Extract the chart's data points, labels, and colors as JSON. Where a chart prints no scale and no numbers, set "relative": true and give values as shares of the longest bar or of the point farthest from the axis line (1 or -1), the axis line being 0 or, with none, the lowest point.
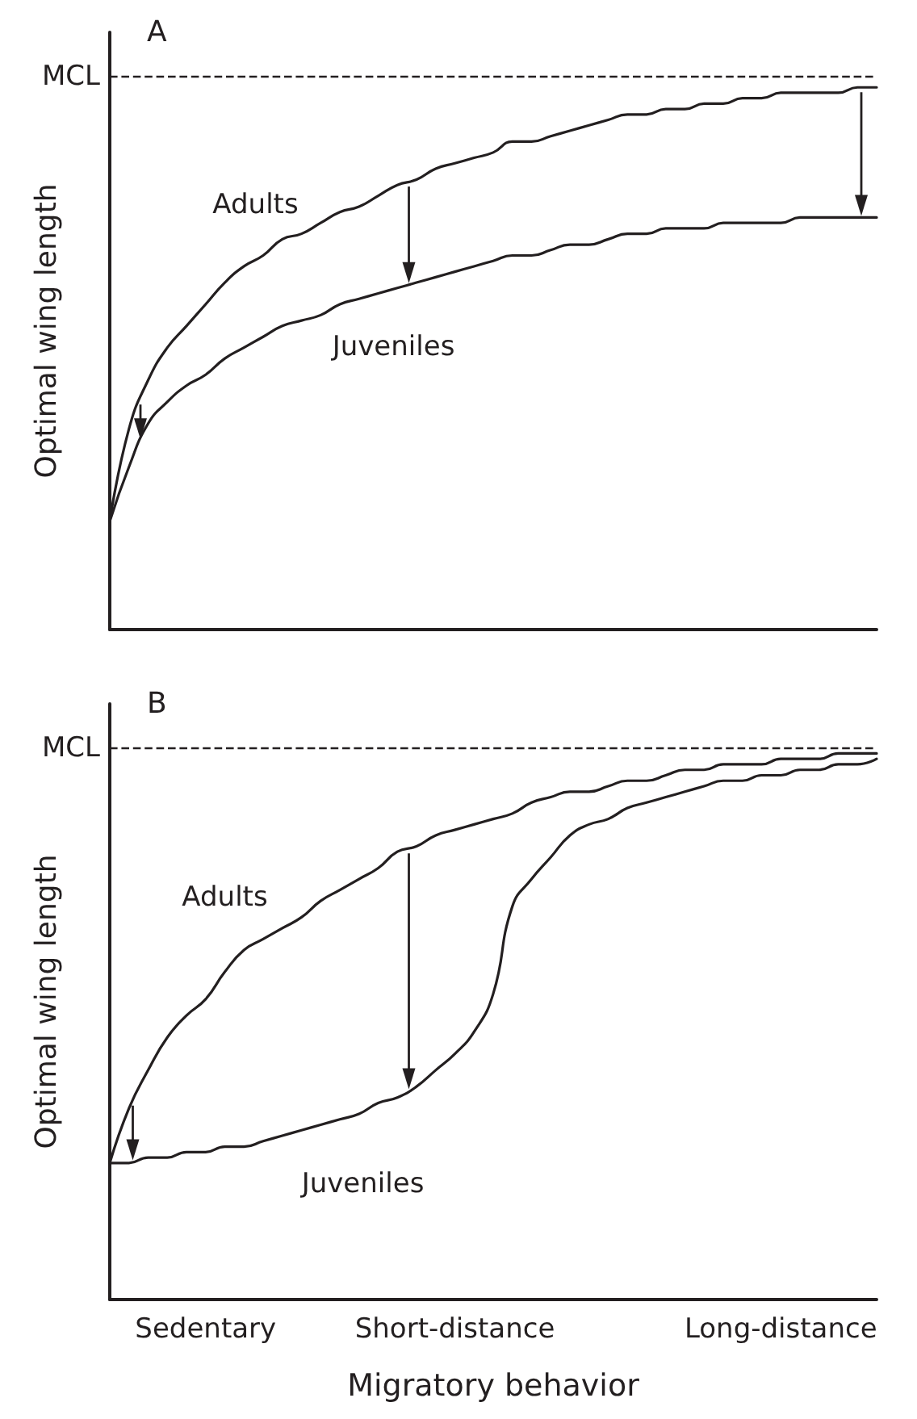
{
  "chart_data": [
    {
      "type": "line",
      "title": "A",
      "ylabel": "Optimal wing length",
      "relative": true,
      "tick_labels": false,
      "marker": "none",
      "categories": [
        null,
        null,
        null,
        null,
        null,
        null,
        null,
        null,
        null,
        null,
        null,
        null,
        null,
        null,
        null,
        null,
        null,
        null,
        null,
        null,
        null,
        null,
        null,
        null,
        null,
        null,
        null,
        null,
        null,
        null,
        null,
        null,
        null,
        null,
        null,
        null,
        null,
        null,
        null,
        null,
        null
      ],
      "ref_lines": [
        {
          "axis": "y",
          "value": 1.02,
          "label": "MCL",
          "line_style": "dashed",
          "color": "#231f20"
        }
      ],
      "series": [
        {
          "name": "Adults",
          "color": "#231f20",
          "values": [
            0.2,
            0.37,
            0.46,
            0.52,
            0.56,
            0.6,
            0.64,
            0.67,
            0.69,
            0.72,
            0.73,
            0.75,
            0.77,
            0.78,
            0.8,
            0.82,
            0.83,
            0.85,
            0.86,
            0.87,
            0.88,
            0.9,
            0.9,
            0.91,
            0.92,
            0.93,
            0.94,
            0.95,
            0.95,
            0.96,
            0.96,
            0.97,
            0.97,
            0.98,
            0.98,
            0.99,
            0.99,
            0.99,
            0.99,
            1,
            1
          ]
        },
        {
          "name": "Juveniles",
          "color": "#231f20",
          "values": [
            0.2,
            0.3,
            0.38,
            0.42,
            0.45,
            0.47,
            0.5,
            0.52,
            0.54,
            0.56,
            0.57,
            0.58,
            0.6,
            0.61,
            0.62,
            0.63,
            0.64,
            0.65,
            0.66,
            0.67,
            0.68,
            0.69,
            0.69,
            0.7,
            0.71,
            0.71,
            0.72,
            0.73,
            0.73,
            0.74,
            0.74,
            0.74,
            0.75,
            0.75,
            0.75,
            0.75,
            0.76,
            0.76,
            0.76,
            0.76,
            0.76
          ]
        }
      ]
    },
    {
      "type": "line",
      "title": "B",
      "ylabel": "Optimal wing length",
      "xlabel": "Migratory behavior",
      "relative": true,
      "tick_labels": "x",
      "marker": "none",
      "categories": [
        null,
        null,
        null,
        null,
        null,
        "Sedentary",
        null,
        null,
        null,
        null,
        null,
        null,
        null,
        null,
        null,
        null,
        null,
        null,
        "Short-distance",
        null,
        null,
        null,
        null,
        null,
        null,
        null,
        null,
        null,
        null,
        null,
        null,
        null,
        null,
        null,
        null,
        "Long-distance",
        null,
        null,
        null,
        null,
        null
      ],
      "ref_lines": [
        {
          "axis": "y",
          "value": 1.01,
          "label": "MCL",
          "line_style": "dashed",
          "color": "#231f20"
        }
      ],
      "series": [
        {
          "name": "Adults",
          "color": "#231f20",
          "values": [
            0.25,
            0.35,
            0.42,
            0.48,
            0.52,
            0.55,
            0.6,
            0.64,
            0.66,
            0.68,
            0.7,
            0.73,
            0.75,
            0.77,
            0.79,
            0.82,
            0.83,
            0.85,
            0.86,
            0.87,
            0.88,
            0.89,
            0.91,
            0.92,
            0.93,
            0.93,
            0.94,
            0.95,
            0.95,
            0.96,
            0.97,
            0.97,
            0.98,
            0.98,
            0.98,
            0.99,
            0.99,
            0.99,
            1,
            1,
            1
          ]
        },
        {
          "name": "Juveniles",
          "color": "#231f20",
          "values": [
            0.25,
            0.25,
            0.26,
            0.26,
            0.27,
            0.27,
            0.28,
            0.28,
            0.29,
            0.3,
            0.31,
            0.32,
            0.33,
            0.34,
            0.36,
            0.37,
            0.39,
            0.42,
            0.45,
            0.49,
            0.56,
            0.72,
            0.77,
            0.81,
            0.85,
            0.87,
            0.88,
            0.9,
            0.91,
            0.92,
            0.93,
            0.94,
            0.95,
            0.95,
            0.96,
            0.96,
            0.97,
            0.97,
            0.98,
            0.98,
            0.99
          ]
        }
      ]
    }
  ]
}
